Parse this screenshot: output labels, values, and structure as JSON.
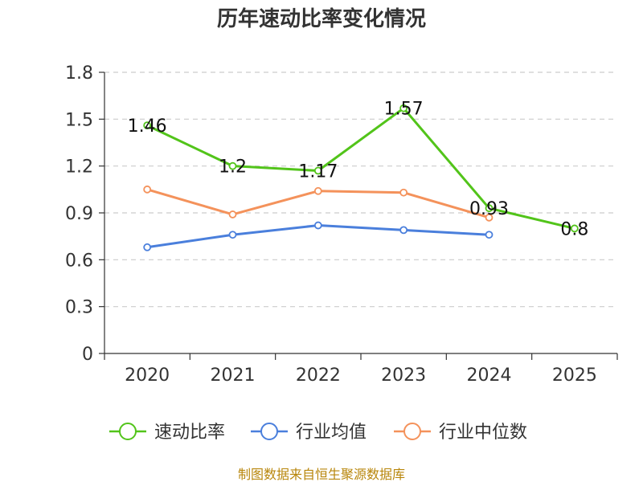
{
  "chart_data": {
    "type": "line",
    "title": "历年速动比率变化情况",
    "categories": [
      "2020",
      "2021",
      "2022",
      "2023",
      "2024",
      "2025"
    ],
    "ylim": [
      0,
      1.8
    ],
    "y_ticks": [
      "0",
      "0.3",
      "0.6",
      "0.9",
      "1.2",
      "1.5",
      "1.8"
    ],
    "grid": true,
    "legend_position": "bottom",
    "series": [
      {
        "name": "速动比率",
        "color": "#52c41a",
        "values": [
          1.46,
          1.2,
          1.17,
          1.57,
          0.93,
          0.8
        ],
        "labels": [
          "1.46",
          "1.2",
          "1.17",
          "1.57",
          "0.93",
          "0.8"
        ]
      },
      {
        "name": "行业均值",
        "color": "#4a7fdc",
        "values": [
          0.68,
          0.76,
          0.82,
          0.79,
          0.76,
          null
        ]
      },
      {
        "name": "行业中位数",
        "color": "#f4925b",
        "values": [
          1.05,
          0.89,
          1.04,
          1.03,
          0.87,
          null
        ]
      }
    ]
  },
  "source": "制图数据来自恒生聚源数据库"
}
